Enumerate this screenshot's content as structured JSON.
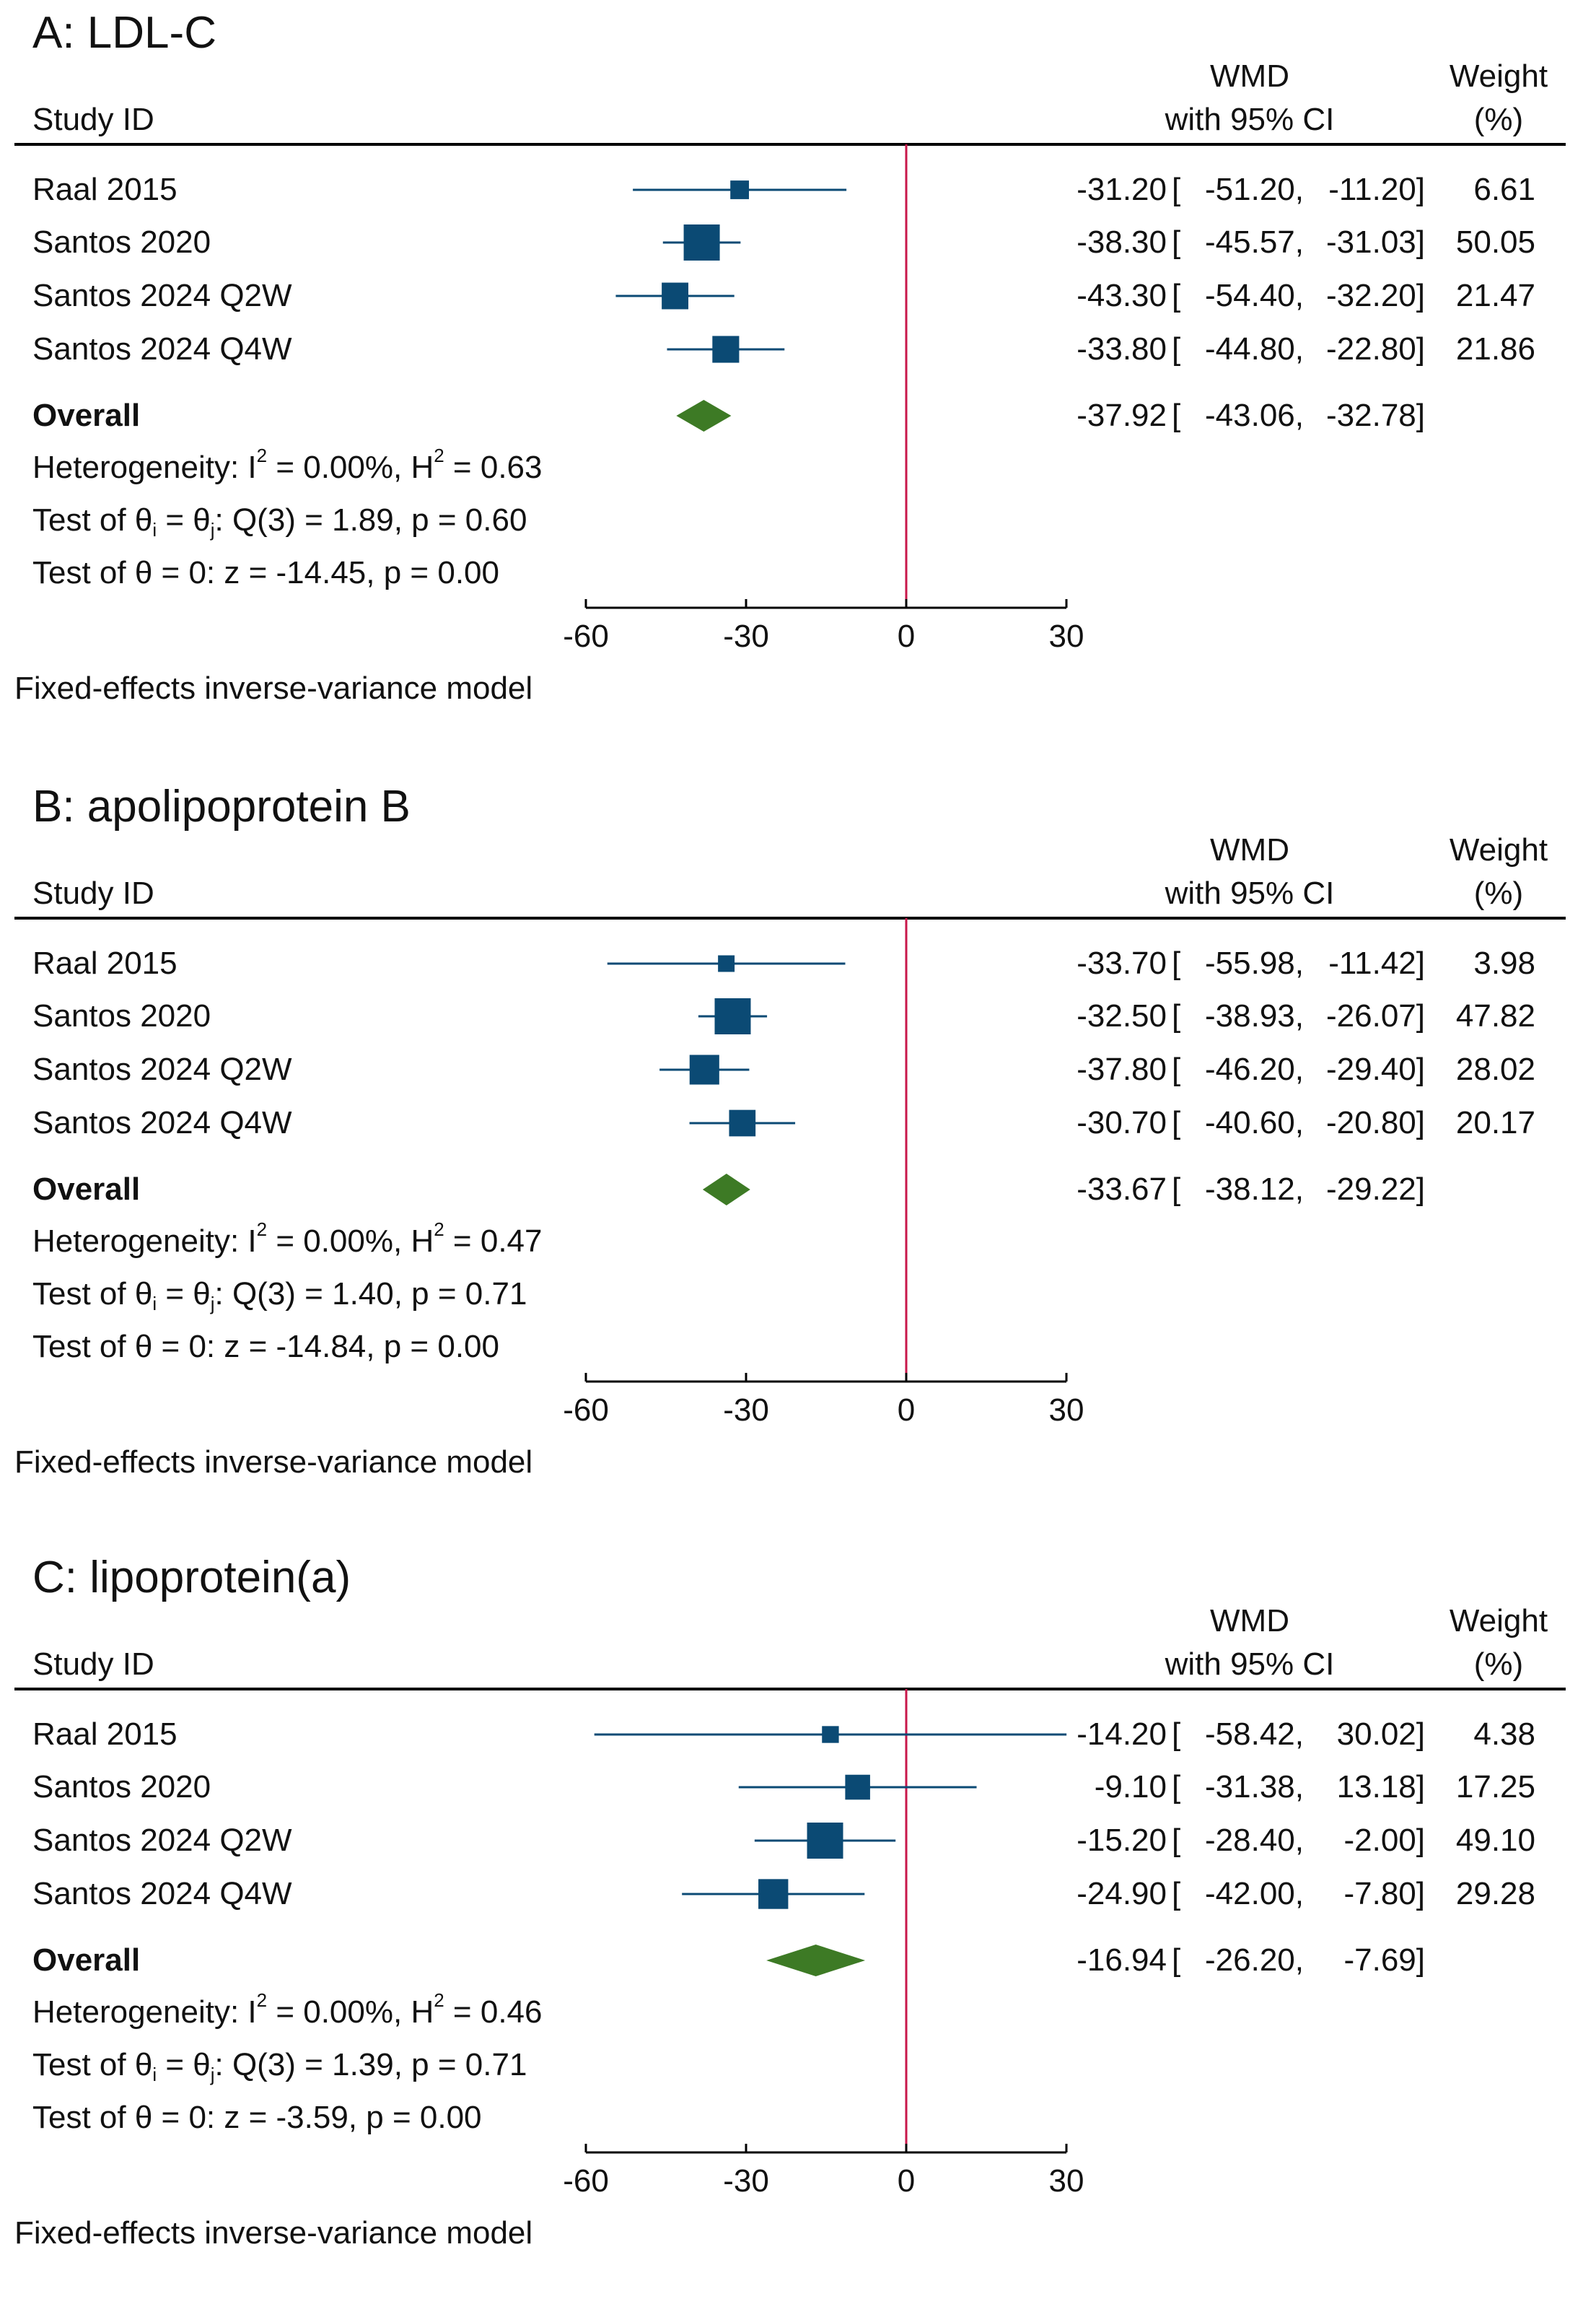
{
  "chart_data": [
    {
      "type": "forest",
      "title": "A: LDL-C",
      "header": {
        "study": "Study ID",
        "wmd_line1": "WMD",
        "wmd_line2": "with 95% CI",
        "weight_line1": "Weight",
        "weight_line2": "(%)"
      },
      "studies": [
        {
          "name": "Raal 2015",
          "wmd": -31.2,
          "lo": -51.2,
          "hi": -11.2,
          "weight": 6.61,
          "wmd_s": "-31.20",
          "lo_s": "-51.20,",
          "hi_s": "-11.20]",
          "weight_s": "6.61"
        },
        {
          "name": "Santos 2020",
          "wmd": -38.3,
          "lo": -45.57,
          "hi": -31.03,
          "weight": 50.05,
          "wmd_s": "-38.30",
          "lo_s": "-45.57,",
          "hi_s": "-31.03]",
          "weight_s": "50.05"
        },
        {
          "name": "Santos 2024 Q2W",
          "wmd": -43.3,
          "lo": -54.4,
          "hi": -32.2,
          "weight": 21.47,
          "wmd_s": "-43.30",
          "lo_s": "-54.40,",
          "hi_s": "-32.20]",
          "weight_s": "21.47"
        },
        {
          "name": "Santos 2024 Q4W",
          "wmd": -33.8,
          "lo": -44.8,
          "hi": -22.8,
          "weight": 21.86,
          "wmd_s": "-33.80",
          "lo_s": "-44.80,",
          "hi_s": "-22.80]",
          "weight_s": "21.86"
        }
      ],
      "overall": {
        "name": "Overall",
        "wmd": -37.92,
        "lo": -43.06,
        "hi": -32.78,
        "wmd_s": "-37.92",
        "lo_s": "-43.06,",
        "hi_s": "-32.78]"
      },
      "bracket": "[",
      "heterogeneity": {
        "prefix": "Heterogeneity: I",
        "mid": " = 0.00%, H",
        "suffix": " = 0.63",
        "sq": "2"
      },
      "test_q": {
        "prefix": "Test of θ",
        "i": "i",
        "eq": " = θ",
        "j": "j",
        "suffix": ": Q(3) = 1.89, p = 0.60"
      },
      "test_z": "Test of θ = 0: z = -14.45, p = 0.00",
      "x_ticks": [
        -60,
        -30,
        0,
        30
      ],
      "x_tick_labels": [
        "-60",
        "-30",
        "0",
        "30"
      ],
      "xlim": [
        -60,
        30
      ],
      "model": "Fixed-effects inverse-variance model"
    },
    {
      "type": "forest",
      "title": "B: apolipoprotein B",
      "header": {
        "study": "Study ID",
        "wmd_line1": "WMD",
        "wmd_line2": "with 95% CI",
        "weight_line1": "Weight",
        "weight_line2": "(%)"
      },
      "studies": [
        {
          "name": "Raal 2015",
          "wmd": -33.7,
          "lo": -55.98,
          "hi": -11.42,
          "weight": 3.98,
          "wmd_s": "-33.70",
          "lo_s": "-55.98,",
          "hi_s": "-11.42]",
          "weight_s": "3.98"
        },
        {
          "name": "Santos 2020",
          "wmd": -32.5,
          "lo": -38.93,
          "hi": -26.07,
          "weight": 47.82,
          "wmd_s": "-32.50",
          "lo_s": "-38.93,",
          "hi_s": "-26.07]",
          "weight_s": "47.82"
        },
        {
          "name": "Santos 2024 Q2W",
          "wmd": -37.8,
          "lo": -46.2,
          "hi": -29.4,
          "weight": 28.02,
          "wmd_s": "-37.80",
          "lo_s": "-46.20,",
          "hi_s": "-29.40]",
          "weight_s": "28.02"
        },
        {
          "name": "Santos 2024 Q4W",
          "wmd": -30.7,
          "lo": -40.6,
          "hi": -20.8,
          "weight": 20.17,
          "wmd_s": "-30.70",
          "lo_s": "-40.60,",
          "hi_s": "-20.80]",
          "weight_s": "20.17"
        }
      ],
      "overall": {
        "name": "Overall",
        "wmd": -33.67,
        "lo": -38.12,
        "hi": -29.22,
        "wmd_s": "-33.67",
        "lo_s": "-38.12,",
        "hi_s": "-29.22]"
      },
      "bracket": "[",
      "heterogeneity": {
        "prefix": "Heterogeneity: I",
        "mid": " = 0.00%, H",
        "suffix": " = 0.47",
        "sq": "2"
      },
      "test_q": {
        "prefix": "Test of θ",
        "i": "i",
        "eq": " = θ",
        "j": "j",
        "suffix": ": Q(3) = 1.40, p = 0.71"
      },
      "test_z": "Test of θ = 0: z = -14.84, p = 0.00",
      "x_ticks": [
        -60,
        -30,
        0,
        30
      ],
      "x_tick_labels": [
        "-60",
        "-30",
        "0",
        "30"
      ],
      "xlim": [
        -60,
        30
      ],
      "model": "Fixed-effects inverse-variance model"
    },
    {
      "type": "forest",
      "title": "C: lipoprotein(a)",
      "header": {
        "study": "Study ID",
        "wmd_line1": "WMD",
        "wmd_line2": "with 95% CI",
        "weight_line1": "Weight",
        "weight_line2": "(%)"
      },
      "studies": [
        {
          "name": "Raal 2015",
          "wmd": -14.2,
          "lo": -58.42,
          "hi": 30.02,
          "weight": 4.38,
          "wmd_s": "-14.20",
          "lo_s": "-58.42,",
          "hi_s": "30.02]",
          "weight_s": "4.38"
        },
        {
          "name": "Santos 2020",
          "wmd": -9.1,
          "lo": -31.38,
          "hi": 13.18,
          "weight": 17.25,
          "wmd_s": "-9.10",
          "lo_s": "-31.38,",
          "hi_s": "13.18]",
          "weight_s": "17.25"
        },
        {
          "name": "Santos 2024 Q2W",
          "wmd": -15.2,
          "lo": -28.4,
          "hi": -2.0,
          "weight": 49.1,
          "wmd_s": "-15.20",
          "lo_s": "-28.40,",
          "hi_s": "-2.00]",
          "weight_s": "49.10"
        },
        {
          "name": "Santos 2024 Q4W",
          "wmd": -24.9,
          "lo": -42.0,
          "hi": -7.8,
          "weight": 29.28,
          "wmd_s": "-24.90",
          "lo_s": "-42.00,",
          "hi_s": "-7.80]",
          "weight_s": "29.28"
        }
      ],
      "overall": {
        "name": "Overall",
        "wmd": -16.94,
        "lo": -26.2,
        "hi": -7.69,
        "wmd_s": "-16.94",
        "lo_s": "-26.20,",
        "hi_s": "-7.69]"
      },
      "bracket": "[",
      "heterogeneity": {
        "prefix": "Heterogeneity: I",
        "mid": " = 0.00%, H",
        "suffix": " = 0.46",
        "sq": "2"
      },
      "test_q": {
        "prefix": "Test of θ",
        "i": "i",
        "eq": " = θ",
        "j": "j",
        "suffix": ": Q(3) = 1.39, p = 0.71"
      },
      "test_z": "Test of θ = 0: z = -3.59, p = 0.00",
      "x_ticks": [
        -60,
        -30,
        0,
        30
      ],
      "x_tick_labels": [
        "-60",
        "-30",
        "0",
        "30"
      ],
      "xlim": [
        -60,
        30
      ],
      "model": "Fixed-effects inverse-variance model"
    }
  ],
  "colors": {
    "marker": "#0b4a74",
    "ci_line": "#0b4a74",
    "diamond": "#3d7a25",
    "null_line": "#c8174a",
    "axis": "#000000"
  }
}
